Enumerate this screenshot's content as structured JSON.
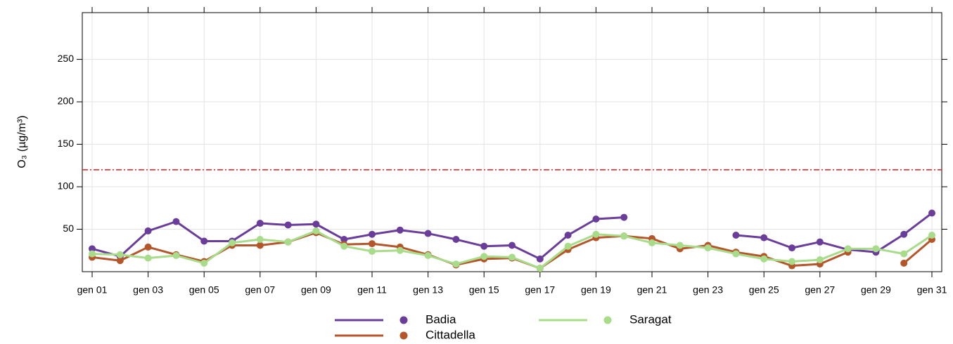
{
  "chart_data": {
    "type": "line",
    "y_label": "O₃ (µg/m³)",
    "categories": [
      "gen 01",
      null,
      "gen 03",
      null,
      "gen 05",
      null,
      "gen 07",
      null,
      "gen 09",
      null,
      "gen 11",
      null,
      "gen 13",
      null,
      "gen 15",
      null,
      "gen 17",
      null,
      "gen 19",
      null,
      "gen 21",
      null,
      "gen 23",
      null,
      "gen 25",
      null,
      "gen 27",
      null,
      "gen 29",
      null,
      "gen 31"
    ],
    "series": [
      {
        "name": "Badia",
        "color": "#6a3d9a",
        "values": [
          27,
          18,
          48,
          59,
          36,
          36,
          57,
          55,
          56,
          38,
          44,
          49,
          45,
          38,
          30,
          31,
          15,
          43,
          62,
          64,
          null,
          null,
          null,
          43,
          40,
          28,
          35,
          26,
          23,
          44,
          69
        ]
      },
      {
        "name": "Cittadella",
        "color": "#b5562a",
        "values": [
          17,
          13,
          29,
          20,
          12,
          31,
          31,
          35,
          46,
          32,
          33,
          29,
          20,
          8,
          15,
          16,
          4,
          26,
          40,
          42,
          39,
          27,
          31,
          23,
          18,
          7,
          9,
          23,
          null,
          10,
          38
        ]
      },
      {
        "name": "Saragat",
        "color": "#a8dc8a",
        "values": [
          21,
          20,
          16,
          19,
          10,
          34,
          38,
          35,
          48,
          30,
          24,
          25,
          19,
          9,
          18,
          17,
          4,
          30,
          44,
          42,
          34,
          31,
          28,
          21,
          15,
          12,
          14,
          27,
          27,
          21,
          43
        ]
      }
    ],
    "ylim": [
      0,
      305
    ],
    "yticks": [
      50,
      100,
      150,
      200,
      250
    ],
    "grid": true,
    "reference_line": {
      "value": 120,
      "color": "#e31a1c"
    }
  }
}
